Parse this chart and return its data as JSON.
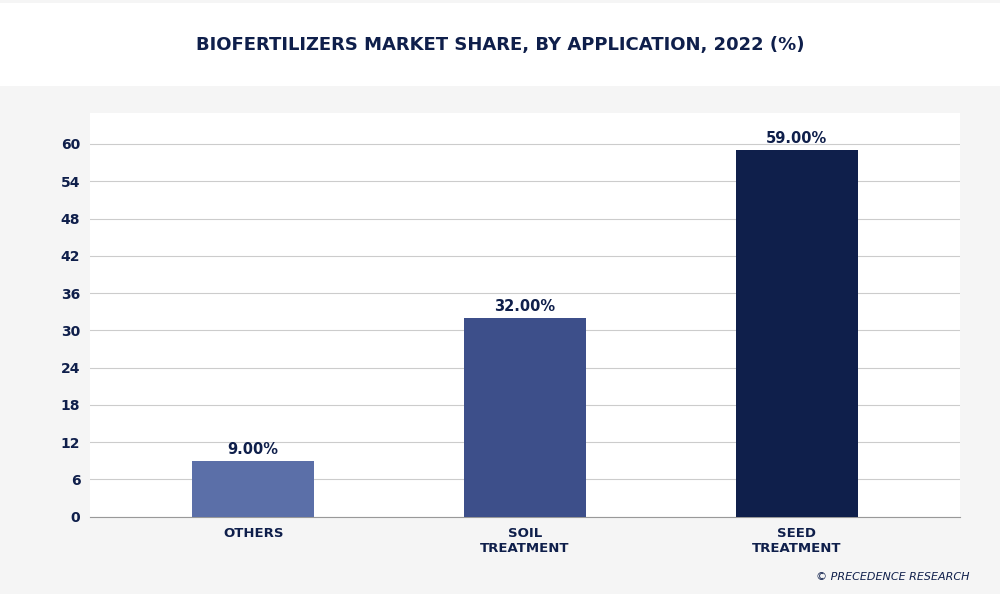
{
  "title": "BIOFERTILIZERS MARKET SHARE, BY APPLICATION, 2022 (%)",
  "categories": [
    "OTHERS",
    "SOIL\nTREATMENT",
    "SEED\nTREATMENT"
  ],
  "values": [
    9.0,
    32.0,
    59.0
  ],
  "bar_colors": [
    "#5b6fa8",
    "#3d4f8a",
    "#0f1f4b"
  ],
  "bar_labels": [
    "9.00%",
    "32.00%",
    "59.00%"
  ],
  "yticks": [
    0,
    6,
    12,
    18,
    24,
    30,
    36,
    42,
    48,
    54,
    60
  ],
  "ylim": [
    0,
    65
  ],
  "background_color": "#f5f5f5",
  "plot_bg_color": "#ffffff",
  "title_color": "#0f1f4b",
  "tick_color": "#0f1f4b",
  "label_color": "#0f1f4b",
  "grid_color": "#cccccc",
  "title_fontsize": 13,
  "bar_label_fontsize": 10.5,
  "tick_fontsize": 10,
  "xlabel_fontsize": 9.5,
  "watermark": "© PRECEDENCE RESEARCH",
  "header_bg_color": "#ffffff",
  "header_accent_color": "#1a2a5e",
  "bar_width": 0.45
}
